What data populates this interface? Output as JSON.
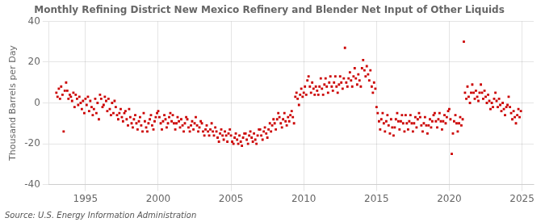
{
  "chart_data": {
    "type": "scatter",
    "title": "Monthly Refining District New Mexico Refinery and Blender Net Input of Other Liquids",
    "ylabel": "Thousand Barrels per Day",
    "source": "Source: U.S. Energy Information Administration",
    "color": "#cc0000",
    "marker": "square",
    "grid": true,
    "xlim": [
      1992.5,
      2025.8
    ],
    "ylim": [
      -40,
      40
    ],
    "xticks": [
      1995,
      2000,
      2005,
      2010,
      2015,
      2020,
      2025
    ],
    "yticks": [
      -40,
      -20,
      0,
      20,
      40
    ],
    "x": [
      1993.0,
      1993.08,
      1993.17,
      1993.25,
      1993.33,
      1993.42,
      1993.5,
      1993.58,
      1993.67,
      1993.75,
      1993.83,
      1993.92,
      1994.0,
      1994.08,
      1994.17,
      1994.25,
      1994.33,
      1994.42,
      1994.5,
      1994.58,
      1994.67,
      1994.75,
      1994.83,
      1994.92,
      1995.0,
      1995.08,
      1995.17,
      1995.25,
      1995.33,
      1995.42,
      1995.5,
      1995.58,
      1995.67,
      1995.75,
      1995.83,
      1995.92,
      1996.0,
      1996.08,
      1996.17,
      1996.25,
      1996.33,
      1996.42,
      1996.5,
      1996.58,
      1996.67,
      1996.75,
      1996.83,
      1996.92,
      1997.0,
      1997.08,
      1997.17,
      1997.25,
      1997.33,
      1997.42,
      1997.5,
      1997.58,
      1997.67,
      1997.75,
      1997.83,
      1997.92,
      1998.0,
      1998.08,
      1998.17,
      1998.25,
      1998.33,
      1998.42,
      1998.5,
      1998.58,
      1998.67,
      1998.75,
      1998.83,
      1998.92,
      1999.0,
      1999.08,
      1999.17,
      1999.25,
      1999.33,
      1999.42,
      1999.5,
      1999.58,
      1999.67,
      1999.75,
      1999.83,
      1999.92,
      2000.0,
      2000.08,
      2000.17,
      2000.25,
      2000.33,
      2000.42,
      2000.5,
      2000.58,
      2000.67,
      2000.75,
      2000.83,
      2000.92,
      2001.0,
      2001.08,
      2001.17,
      2001.25,
      2001.33,
      2001.42,
      2001.5,
      2001.58,
      2001.67,
      2001.75,
      2001.83,
      2001.92,
      2002.0,
      2002.08,
      2002.17,
      2002.25,
      2002.33,
      2002.42,
      2002.5,
      2002.58,
      2002.67,
      2002.75,
      2002.83,
      2002.92,
      2003.0,
      2003.08,
      2003.17,
      2003.25,
      2003.33,
      2003.42,
      2003.5,
      2003.58,
      2003.67,
      2003.75,
      2003.83,
      2003.92,
      2004.0,
      2004.08,
      2004.17,
      2004.25,
      2004.33,
      2004.42,
      2004.5,
      2004.58,
      2004.67,
      2004.75,
      2004.83,
      2004.92,
      2005.0,
      2005.08,
      2005.17,
      2005.25,
      2005.33,
      2005.42,
      2005.5,
      2005.58,
      2005.67,
      2005.75,
      2005.83,
      2005.92,
      2006.0,
      2006.08,
      2006.17,
      2006.25,
      2006.33,
      2006.42,
      2006.5,
      2006.58,
      2006.67,
      2006.75,
      2006.83,
      2006.92,
      2007.0,
      2007.08,
      2007.17,
      2007.25,
      2007.33,
      2007.42,
      2007.5,
      2007.58,
      2007.67,
      2007.75,
      2007.83,
      2007.92,
      2008.0,
      2008.08,
      2008.17,
      2008.25,
      2008.33,
      2008.42,
      2008.5,
      2008.58,
      2008.67,
      2008.75,
      2008.83,
      2008.92,
      2009.0,
      2009.08,
      2009.17,
      2009.25,
      2009.33,
      2009.42,
      2009.5,
      2009.58,
      2009.67,
      2009.75,
      2009.83,
      2009.92,
      2010.0,
      2010.08,
      2010.17,
      2010.25,
      2010.33,
      2010.42,
      2010.5,
      2010.58,
      2010.67,
      2010.75,
      2010.83,
      2010.92,
      2011.0,
      2011.08,
      2011.17,
      2011.25,
      2011.33,
      2011.42,
      2011.5,
      2011.58,
      2011.67,
      2011.75,
      2011.83,
      2011.92,
      2012.0,
      2012.08,
      2012.17,
      2012.25,
      2012.33,
      2012.42,
      2012.5,
      2012.58,
      2012.67,
      2012.75,
      2012.83,
      2012.92,
      2013.0,
      2013.08,
      2013.17,
      2013.25,
      2013.33,
      2013.42,
      2013.5,
      2013.58,
      2013.67,
      2013.75,
      2013.83,
      2013.92,
      2014.0,
      2014.08,
      2014.17,
      2014.25,
      2014.33,
      2014.42,
      2014.5,
      2014.58,
      2014.67,
      2014.75,
      2014.83,
      2014.92,
      2015.0,
      2015.08,
      2015.17,
      2015.25,
      2015.33,
      2015.42,
      2015.5,
      2015.58,
      2015.67,
      2015.75,
      2015.83,
      2015.92,
      2016.0,
      2016.08,
      2016.17,
      2016.25,
      2016.33,
      2016.42,
      2016.5,
      2016.58,
      2016.67,
      2016.75,
      2016.83,
      2016.92,
      2017.0,
      2017.08,
      2017.17,
      2017.25,
      2017.33,
      2017.42,
      2017.5,
      2017.58,
      2017.67,
      2017.75,
      2017.83,
      2017.92,
      2018.0,
      2018.08,
      2018.17,
      2018.25,
      2018.33,
      2018.42,
      2018.5,
      2018.58,
      2018.67,
      2018.75,
      2018.83,
      2018.92,
      2019.0,
      2019.08,
      2019.17,
      2019.25,
      2019.33,
      2019.42,
      2019.5,
      2019.58,
      2019.67,
      2019.75,
      2019.83,
      2019.92,
      2020.0,
      2020.08,
      2020.17,
      2020.25,
      2020.33,
      2020.42,
      2020.5,
      2020.58,
      2020.67,
      2020.75,
      2020.83,
      2020.92,
      2021.0,
      2021.08,
      2021.17,
      2021.25,
      2021.33,
      2021.42,
      2021.5,
      2021.58,
      2021.67,
      2021.75,
      2021.83,
      2021.92,
      2022.0,
      2022.08,
      2022.17,
      2022.25,
      2022.33,
      2022.42,
      2022.5,
      2022.58,
      2022.67,
      2022.75,
      2022.83,
      2022.92,
      2023.0,
      2023.08,
      2023.17,
      2023.25,
      2023.33,
      2023.42,
      2023.5,
      2023.58,
      2023.67,
      2023.75,
      2023.83,
      2023.92,
      2024.0,
      2024.08,
      2024.17,
      2024.25,
      2024.33,
      2024.42,
      2024.5,
      2024.58,
      2024.67,
      2024.75,
      2024.83,
      2024.92
    ],
    "values": [
      5,
      3,
      7,
      2,
      8,
      4,
      -14,
      6,
      10,
      6,
      2,
      4,
      3,
      1,
      5,
      -2,
      4,
      2,
      -1,
      3,
      0,
      -3,
      1,
      -5,
      2,
      -1,
      3,
      -4,
      1,
      -2,
      -6,
      -3,
      2,
      -5,
      0,
      -8,
      4,
      2,
      -2,
      -1,
      3,
      1,
      -4,
      2,
      -3,
      -6,
      0,
      -5,
      1,
      -2,
      -6,
      -8,
      -5,
      -3,
      -7,
      -9,
      -5,
      -4,
      -8,
      -11,
      -3,
      -7,
      -10,
      -12,
      -8,
      -6,
      -10,
      -13,
      -9,
      -7,
      -11,
      -14,
      -5,
      -9,
      -12,
      -14,
      -10,
      -8,
      -6,
      -11,
      -13,
      -9,
      -7,
      -5,
      -4,
      -7,
      -10,
      -13,
      -9,
      -6,
      -8,
      -12,
      -10,
      -7,
      -5,
      -9,
      -6,
      -10,
      -13,
      -10,
      -7,
      -9,
      -12,
      -8,
      -11,
      -14,
      -10,
      -7,
      -8,
      -12,
      -14,
      -11,
      -9,
      -13,
      -10,
      -7,
      -11,
      -14,
      -12,
      -9,
      -10,
      -14,
      -16,
      -13,
      -11,
      -14,
      -16,
      -13,
      -10,
      -14,
      -16,
      -12,
      -14,
      -17,
      -19,
      -15,
      -13,
      -16,
      -18,
      -14,
      -16,
      -19,
      -15,
      -13,
      -16,
      -19,
      -20,
      -17,
      -15,
      -18,
      -20,
      -16,
      -19,
      -21,
      -17,
      -15,
      -15,
      -18,
      -20,
      -16,
      -14,
      -17,
      -19,
      -15,
      -18,
      -20,
      -16,
      -13,
      -13,
      -16,
      -18,
      -14,
      -12,
      -15,
      -17,
      -13,
      -10,
      -14,
      -11,
      -8,
      -10,
      -13,
      -8,
      -5,
      -7,
      -10,
      -12,
      -8,
      -5,
      -9,
      -11,
      -7,
      -9,
      -6,
      -4,
      -7,
      -10,
      3,
      5,
      2,
      -1,
      4,
      7,
      3,
      5,
      8,
      4,
      11,
      13,
      8,
      5,
      10,
      7,
      4,
      8,
      6,
      4,
      8,
      12,
      7,
      4,
      9,
      12,
      8,
      5,
      10,
      13,
      8,
      6,
      10,
      13,
      8,
      5,
      9,
      13,
      10,
      7,
      12,
      27,
      10,
      8,
      12,
      15,
      11,
      8,
      13,
      17,
      12,
      9,
      14,
      11,
      8,
      17,
      21,
      16,
      13,
      18,
      14,
      11,
      16,
      8,
      5,
      10,
      7,
      -2,
      -5,
      -9,
      -13,
      -8,
      -5,
      -10,
      -14,
      -9,
      -6,
      -11,
      -15,
      -8,
      -12,
      -16,
      -12,
      -8,
      -5,
      -9,
      -13,
      -9,
      -6,
      -10,
      -14,
      -6,
      -10,
      -13,
      -9,
      -6,
      -10,
      -14,
      -10,
      -7,
      -12,
      -8,
      -5,
      -7,
      -11,
      -14,
      -10,
      -7,
      -11,
      -15,
      -11,
      -8,
      -12,
      -9,
      -6,
      -5,
      -9,
      -12,
      -8,
      -5,
      -9,
      -13,
      -9,
      -6,
      -10,
      -7,
      -4,
      -3,
      -8,
      -25,
      -15,
      -9,
      -6,
      -10,
      -14,
      -10,
      -7,
      -11,
      -8,
      30,
      5,
      2,
      8,
      3,
      0,
      5,
      9,
      5,
      2,
      6,
      3,
      1,
      5,
      9,
      5,
      2,
      6,
      3,
      0,
      4,
      1,
      -3,
      0,
      -2,
      2,
      5,
      1,
      -2,
      2,
      -1,
      -4,
      0,
      -3,
      -6,
      -2,
      -1,
      3,
      -2,
      -5,
      -8,
      -4,
      -7,
      -10,
      -6,
      -3,
      -7,
      -4
    ]
  }
}
